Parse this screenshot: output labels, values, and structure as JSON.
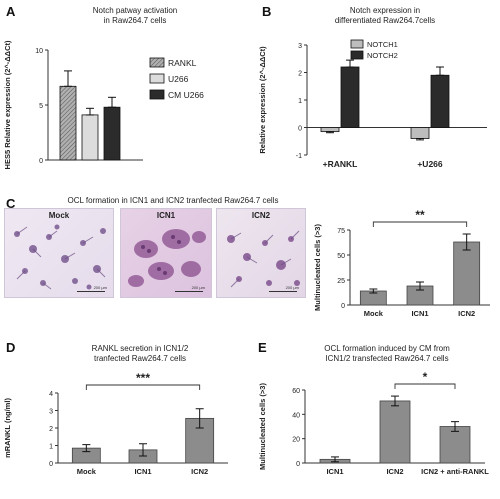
{
  "panels": {
    "A": {
      "letter": "A",
      "title": "Notch patway activation\nin Raw264.7 cells"
    },
    "B": {
      "letter": "B",
      "title": "Notch expression in\ndifferentiated Raw264.7cells"
    },
    "C": {
      "letter": "C",
      "title": "OCL formation in ICN1 and ICN2 tranfected Raw264.7 cells",
      "images": [
        {
          "label": "Mock",
          "scale": "200 µm"
        },
        {
          "label": "ICN1",
          "scale": "200 µm"
        },
        {
          "label": "ICN2",
          "scale": "200 µm"
        }
      ]
    },
    "D": {
      "letter": "D",
      "title": "RANKL secretion in ICN1/2\ntranfected Raw264.7 cells"
    },
    "E": {
      "letter": "E",
      "title": "OCL formation induced by CM from\nICN1/2 transfected Raw264.7 cells"
    }
  },
  "chart_data": [
    {
      "id": "A",
      "type": "bar",
      "categories": [
        "RANKL",
        "U266",
        "CM U266"
      ],
      "values": [
        6.7,
        4.1,
        4.8
      ],
      "errors": [
        1.4,
        0.6,
        0.9
      ],
      "ylabel": "HES5 Relative expression (2^-ΔΔCt)",
      "ylim": [
        0,
        10
      ],
      "yticks": [
        0,
        5,
        10
      ],
      "legend": [
        "RANKL",
        "U266",
        "CM U266"
      ],
      "colors": [
        "#9a9a9a",
        "#dcdcdc",
        "#2b2b2b"
      ]
    },
    {
      "id": "B",
      "type": "bar",
      "categories": [
        "+RANKL",
        "+U266"
      ],
      "series": [
        {
          "name": "NOTCH1",
          "values": [
            -0.15,
            -0.4
          ],
          "errors": [
            0.04,
            0.05
          ]
        },
        {
          "name": "NOTCH2",
          "values": [
            2.2,
            1.9
          ],
          "errors": [
            0.25,
            0.3
          ]
        }
      ],
      "ylabel": "Relative expression (2^-ΔΔCt)",
      "ylim": [
        -1,
        3
      ],
      "yticks": [
        -1,
        0,
        1,
        2,
        3
      ],
      "colors": [
        "#bdbdbd",
        "#2b2b2b"
      ]
    },
    {
      "id": "C",
      "type": "bar",
      "categories": [
        "Mock",
        "ICN1",
        "ICN2"
      ],
      "values": [
        14,
        19,
        63
      ],
      "errors": [
        2,
        4,
        8
      ],
      "ylabel": "Multinucleated cells (>3)",
      "ylim": [
        0,
        75
      ],
      "yticks": [
        0,
        25,
        50,
        75
      ],
      "significance": "**",
      "colors": [
        "#8c8c8c",
        "#8c8c8c",
        "#8c8c8c"
      ]
    },
    {
      "id": "D",
      "type": "bar",
      "categories": [
        "Mock",
        "ICN1",
        "ICN2"
      ],
      "values": [
        0.85,
        0.75,
        2.55
      ],
      "errors": [
        0.2,
        0.35,
        0.55
      ],
      "ylabel": "mRANKL (ng/ml)",
      "ylim": [
        0,
        4
      ],
      "yticks": [
        0,
        1,
        2,
        3,
        4
      ],
      "significance": "***",
      "colors": [
        "#8c8c8c",
        "#8c8c8c",
        "#8c8c8c"
      ]
    },
    {
      "id": "E",
      "type": "bar",
      "categories": [
        "ICN1",
        "ICN2",
        "ICN2 + anti-RANKL"
      ],
      "values": [
        3,
        51,
        30
      ],
      "errors": [
        2,
        4,
        4
      ],
      "ylabel": "Multinucleated cells (>3)",
      "ylim": [
        0,
        60
      ],
      "yticks": [
        0,
        20,
        40,
        60
      ],
      "significance": "*",
      "colors": [
        "#8c8c8c",
        "#8c8c8c",
        "#8c8c8c"
      ]
    }
  ]
}
